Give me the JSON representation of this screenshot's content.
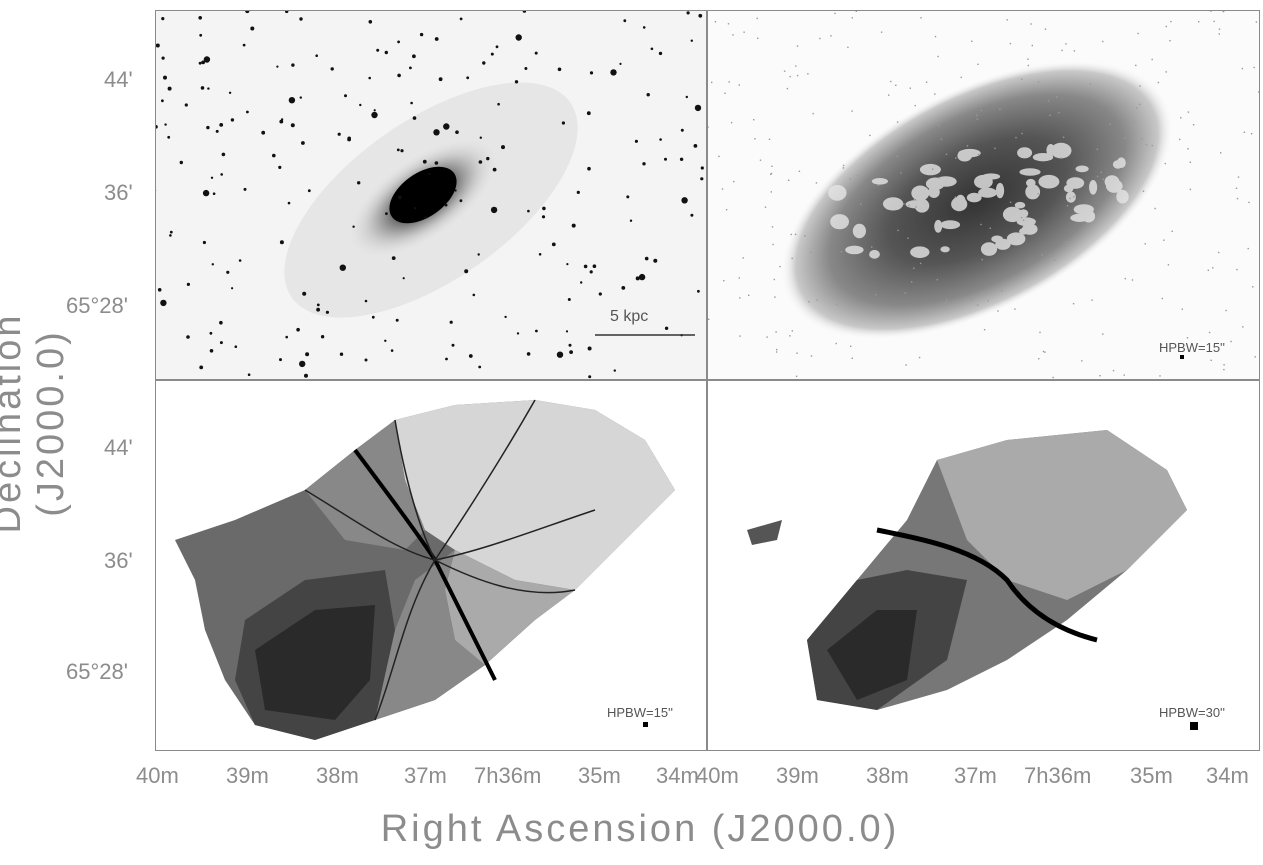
{
  "axes": {
    "ylabel": "Declination (J2000.0)",
    "xlabel": "Right Ascension (J2000.0)",
    "y_ticks": [
      "44'",
      "36'",
      "65°28'"
    ],
    "x_ticks_left": [
      "40m",
      "39m",
      "38m",
      "37m",
      "7h36m",
      "35m",
      "34m"
    ],
    "x_ticks_right": [
      "40m",
      "39m",
      "38m",
      "37m",
      "7h36m",
      "35m",
      "34m"
    ]
  },
  "panels": {
    "top_left": {
      "scale_bar_label": "5 kpc"
    },
    "top_right": {
      "beam_label": "HPBW=15''"
    },
    "bottom_left": {
      "beam_label": "HPBW=15''"
    },
    "bottom_right": {
      "beam_label": "HPBW=30''"
    }
  },
  "colors": {
    "frame": "#8a8a8a",
    "text": "#8c8c8c"
  }
}
